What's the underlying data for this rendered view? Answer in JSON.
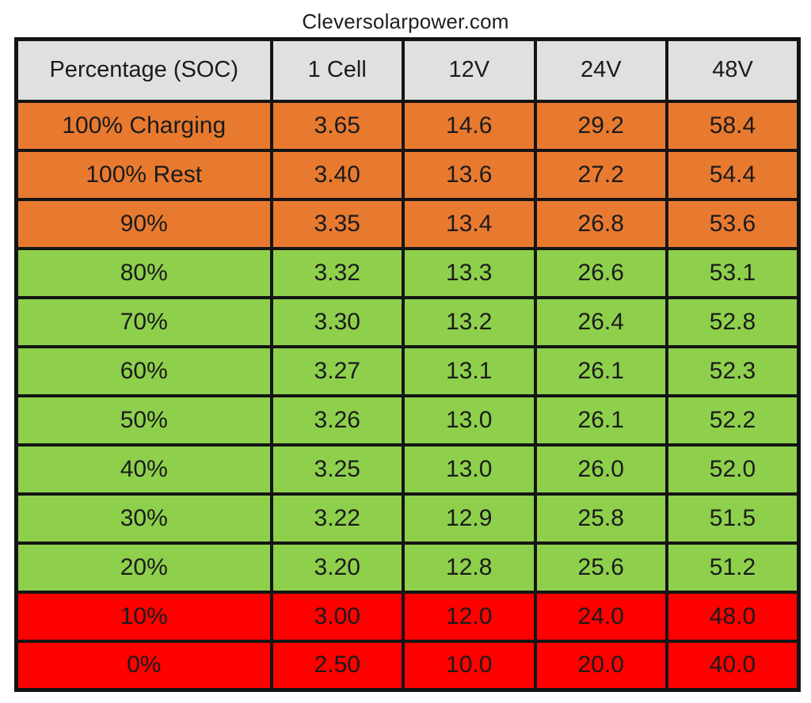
{
  "title": "Cleversolarpower.com",
  "colors": {
    "header_bg": "#e0e0e0",
    "zone_orange": "#e87a30",
    "zone_green": "#8ed04c",
    "zone_red": "#fe0000",
    "border": "#141414"
  },
  "chart_data": {
    "type": "table",
    "title": "Cleversolarpower.com",
    "columns": [
      "Percentage (SOC)",
      "1 Cell",
      "12V",
      "24V",
      "48V"
    ],
    "rows": [
      {
        "label": "100% Charging",
        "values": [
          "3.65",
          "14.6",
          "29.2",
          "58.4"
        ],
        "zone": "orange"
      },
      {
        "label": "100% Rest",
        "values": [
          "3.40",
          "13.6",
          "27.2",
          "54.4"
        ],
        "zone": "orange"
      },
      {
        "label": "90%",
        "values": [
          "3.35",
          "13.4",
          "26.8",
          "53.6"
        ],
        "zone": "orange"
      },
      {
        "label": "80%",
        "values": [
          "3.32",
          "13.3",
          "26.6",
          "53.1"
        ],
        "zone": "green"
      },
      {
        "label": "70%",
        "values": [
          "3.30",
          "13.2",
          "26.4",
          "52.8"
        ],
        "zone": "green"
      },
      {
        "label": "60%",
        "values": [
          "3.27",
          "13.1",
          "26.1",
          "52.3"
        ],
        "zone": "green"
      },
      {
        "label": "50%",
        "values": [
          "3.26",
          "13.0",
          "26.1",
          "52.2"
        ],
        "zone": "green"
      },
      {
        "label": "40%",
        "values": [
          "3.25",
          "13.0",
          "26.0",
          "52.0"
        ],
        "zone": "green"
      },
      {
        "label": "30%",
        "values": [
          "3.22",
          "12.9",
          "25.8",
          "51.5"
        ],
        "zone": "green"
      },
      {
        "label": "20%",
        "values": [
          "3.20",
          "12.8",
          "25.6",
          "51.2"
        ],
        "zone": "green"
      },
      {
        "label": "10%",
        "values": [
          "3.00",
          "12.0",
          "24.0",
          "48.0"
        ],
        "zone": "red"
      },
      {
        "label": "0%",
        "values": [
          "2.50",
          "10.0",
          "20.0",
          "40.0"
        ],
        "zone": "red"
      }
    ]
  }
}
